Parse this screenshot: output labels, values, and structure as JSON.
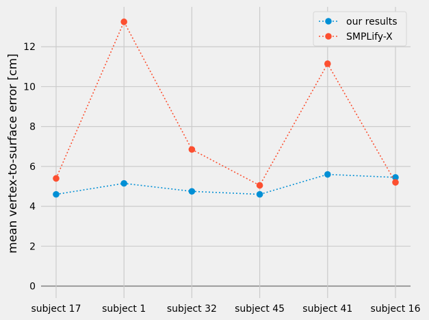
{
  "chart_data": {
    "type": "line",
    "title": "",
    "xlabel": "",
    "ylabel": "mean vertex-to-surface error [cm]",
    "categories": [
      "subject 17",
      "subject 1",
      "subject 32",
      "subject 45",
      "subject 41",
      "subject 16"
    ],
    "series": [
      {
        "name": "our results",
        "color": "#008fd5",
        "values": [
          4.6,
          5.15,
          4.75,
          4.6,
          5.6,
          5.45
        ]
      },
      {
        "name": "SMPLify-X",
        "color": "#fc4f30",
        "values": [
          5.4,
          13.25,
          6.85,
          5.05,
          11.15,
          5.2
        ]
      }
    ],
    "ylim": [
      -0.6,
      14
    ],
    "yticks": [
      "0",
      "2",
      "4",
      "6",
      "8",
      "10",
      "12"
    ],
    "grid": true,
    "legend": "top-right",
    "line_style": "dotted",
    "marker": "circle",
    "colors": {
      "background": "#f0f0f0",
      "grid": "#cbcbcb",
      "zero_line": "#808080"
    }
  }
}
